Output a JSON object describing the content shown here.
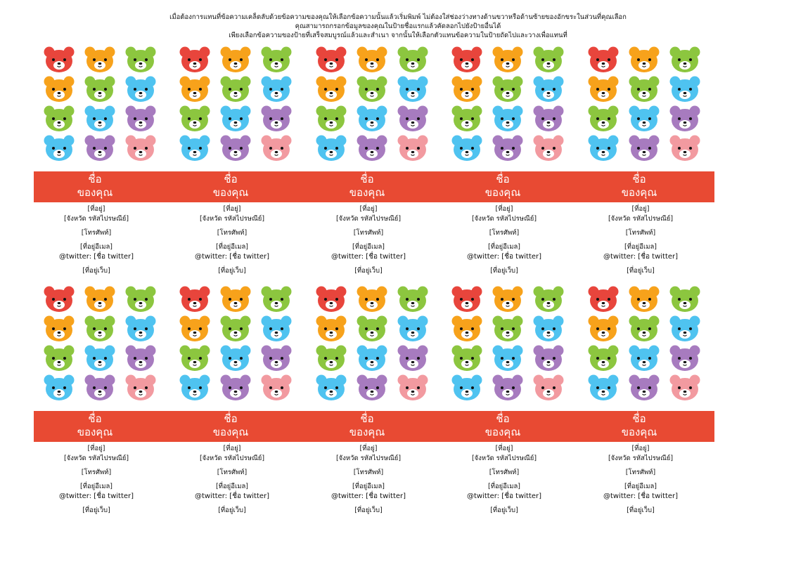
{
  "instructions": [
    "เมื่อต้องการแทนที่ข้อความเคล็ดลับด้วยข้อความของคุณให้เลือกข้อความนั้นแล้วเริ่มพิมพ์ ไม่ต้องใส่ช่องว่างทางด้านขวาหรือด้านซ้ายของอักขระในส่วนที่คุณเลือก",
    "คุณสามารถกรอกข้อมูลของคุณในป้ายชื่อแรกแล้วคัดลอกไปยังป้ายอื่นได้",
    "เพียงเลือกข้อความของป้ายที่เสร็จสมบูรณ์แล้วและสำเนา จากนั้นให้เลือกตัวแทนข้อความในป้ายถัดไปและวางเพื่อแทนที่"
  ],
  "label": {
    "name_line1": "ชื่อ",
    "name_line2": "ของคุณ",
    "address": "[ที่อยู่]",
    "city_zip": "[จังหวัด รหัสไปรษณีย์]",
    "phone": "[โทรศัพท์]",
    "email": "[ที่อยู่อีเมล]",
    "twitter": "@twitter: [ชื่อ twitter]",
    "website": "[ที่อยู่เว็บ]"
  },
  "colors": {
    "band": "#e84a33",
    "bear_red": "#e8453c",
    "bear_orange": "#f7a21b",
    "bear_green": "#8cc63f",
    "bear_blue": "#4fc3f0",
    "bear_purple": "#a77bbf",
    "bear_pink": "#f29aa0"
  },
  "bear_grid_colors": [
    [
      "red",
      "orange",
      "green"
    ],
    [
      "orange",
      "green",
      "blue"
    ],
    [
      "green",
      "blue",
      "purple"
    ],
    [
      "blue",
      "purple",
      "pink"
    ]
  ],
  "icons": {
    "bear": "bear-face-icon"
  }
}
